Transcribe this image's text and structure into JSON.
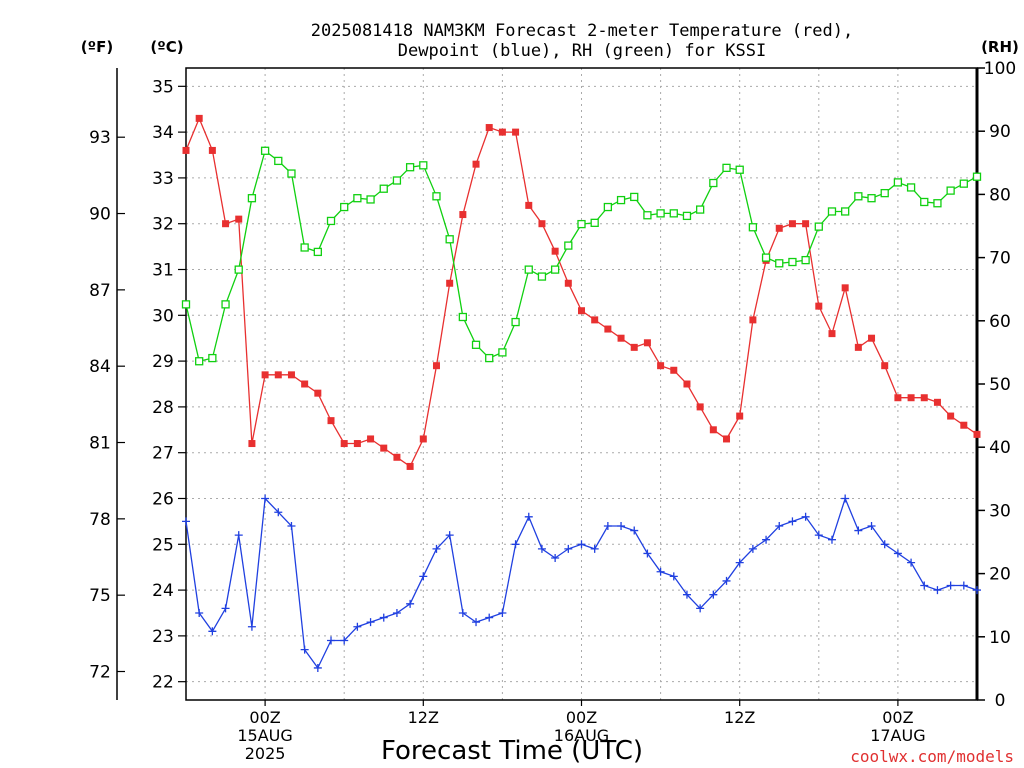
{
  "chart_data": {
    "type": "line",
    "title_line1": "2025081418 NAM3KM Forecast 2-meter Temperature (red),",
    "title_line2": "Dewpoint (blue), RH (green) for KSSI",
    "xlabel": "Forecast Time (UTC)",
    "left_unit_f": "(ºF)",
    "left_unit_c": "(ºC)",
    "right_unit": "(RH)",
    "credit": "coolwx.com/models",
    "ylim_c": [
      21.6,
      35.4
    ],
    "ylim_rh": [
      0,
      100
    ],
    "y_ticks_c": [
      "22",
      "23",
      "24",
      "25",
      "26",
      "27",
      "28",
      "29",
      "30",
      "31",
      "32",
      "33",
      "34",
      "35"
    ],
    "y_ticks_f": [
      "72",
      "75",
      "78",
      "81",
      "84",
      "87",
      "90",
      "93"
    ],
    "y_ticks_rh": [
      "0",
      "10",
      "20",
      "30",
      "40",
      "50",
      "60",
      "70",
      "80",
      "90",
      "100"
    ],
    "x_range_hours": [
      -6,
      54
    ],
    "x_ticks": [
      {
        "hour": 0,
        "lines": [
          "00Z",
          "15AUG",
          "2025"
        ]
      },
      {
        "hour": 12,
        "lines": [
          "12Z"
        ]
      },
      {
        "hour": 24,
        "lines": [
          "00Z",
          "16AUG"
        ]
      },
      {
        "hour": 36,
        "lines": [
          "12Z"
        ]
      },
      {
        "hour": 48,
        "lines": [
          "00Z",
          "17AUG"
        ]
      }
    ],
    "x_hours_start": -6,
    "x_hours_step": 1,
    "series": [
      {
        "name": "Temperature",
        "unit": "C",
        "color": "#e83030",
        "marker": "filled-square",
        "values": [
          33.6,
          34.3,
          33.6,
          32.0,
          32.1,
          27.2,
          28.7,
          28.7,
          28.7,
          28.5,
          28.3,
          27.7,
          27.2,
          27.2,
          27.3,
          27.1,
          26.9,
          26.7,
          27.3,
          28.9,
          30.7,
          32.2,
          33.3,
          34.1,
          34.0,
          34.0,
          32.4,
          32.0,
          31.4,
          30.7,
          30.1,
          29.9,
          29.7,
          29.5,
          29.3,
          29.4,
          28.9,
          28.8,
          28.5,
          28.0,
          27.5,
          27.3,
          27.8,
          29.9,
          31.2,
          31.9,
          32.0,
          32.0,
          30.2,
          29.6,
          30.6,
          29.3,
          29.5,
          28.9,
          28.2,
          28.2,
          28.2,
          28.1,
          27.8,
          27.6,
          27.4
        ],
        "temp_vertices_f": "see values"
      },
      {
        "name": "Dewpoint",
        "unit": "C",
        "color": "#2040e0",
        "marker": "plus",
        "values": [
          25.5,
          23.5,
          23.1,
          23.6,
          25.2,
          23.2,
          26.0,
          25.7,
          25.4,
          22.7,
          22.3,
          22.9,
          22.9,
          23.2,
          23.3,
          23.4,
          23.5,
          23.7,
          24.3,
          24.9,
          25.2,
          23.5,
          23.3,
          23.4,
          23.5,
          25.0,
          25.6,
          24.9,
          24.7,
          24.9,
          25.0,
          24.9,
          25.4,
          25.4,
          25.3,
          24.8,
          24.4,
          24.3,
          23.9,
          23.6,
          23.9,
          24.2,
          24.6,
          24.9,
          25.1,
          25.4,
          25.5,
          25.6,
          25.2,
          25.1,
          26.0,
          25.3,
          25.4,
          25.0,
          24.8,
          24.6,
          24.1,
          24.0,
          24.1,
          24.1,
          24.0
        ]
      },
      {
        "name": "RH",
        "unit": "%",
        "color": "#10d010",
        "marker": "open-square",
        "values": [
          62.6,
          53.6,
          54.1,
          62.6,
          68.1,
          79.4,
          86.9,
          85.3,
          83.3,
          71.6,
          70.9,
          75.8,
          78.0,
          79.4,
          79.2,
          80.9,
          82.2,
          84.3,
          84.6,
          79.7,
          72.9,
          60.6,
          56.2,
          54.1,
          55.0,
          59.8,
          68.1,
          67.0,
          68.1,
          71.9,
          75.3,
          75.5,
          78.0,
          79.1,
          79.6,
          76.7,
          77.0,
          77.0,
          76.6,
          77.6,
          81.8,
          84.2,
          83.9,
          74.8,
          70.0,
          69.1,
          69.3,
          69.6,
          74.9,
          77.3,
          77.3,
          79.7,
          79.4,
          80.2,
          81.9,
          81.1,
          78.8,
          78.6,
          80.6,
          81.7,
          82.8
        ]
      }
    ]
  }
}
